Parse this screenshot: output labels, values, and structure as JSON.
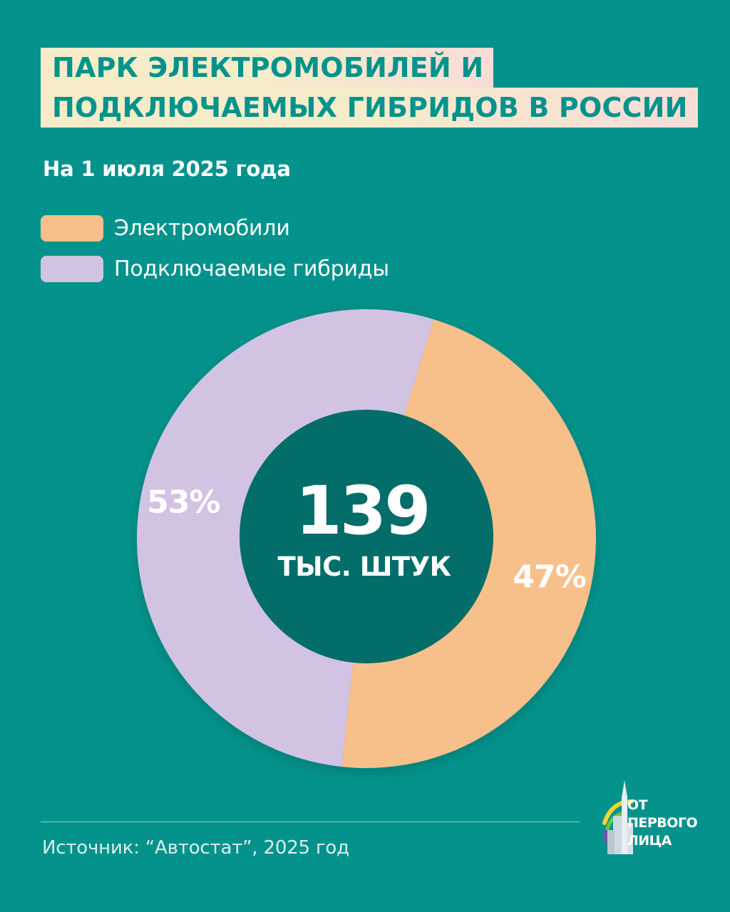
{
  "title_lines": [
    "ПАРК ЭЛЕКТРОМОБИЛЕЙ И",
    "ПОДКЛЮЧАЕМЫХ ГИБРИДОВ В РОССИИ"
  ],
  "subtitle": "На 1 июля 2025 года",
  "legend": [
    {
      "label": "Электромобили",
      "color": "#f7c08a"
    },
    {
      "label": "Подключаемые гибриды",
      "color": "#d3c3e3"
    }
  ],
  "center": {
    "value": "139",
    "unit": "ТЫС. ШТУК"
  },
  "source": "Источник: “Автостат”, 2025 год",
  "logo": {
    "lines": [
      "ОТ",
      "ПЕРВОГО",
      "ЛИЦА"
    ],
    "icon": "tower-rainbow-logo-icon"
  },
  "colors": {
    "background": "#03938c",
    "center_circle": "#036d69",
    "title_text": "#04938c"
  },
  "chart_data": {
    "type": "pie",
    "categories": [
      "Электромобили",
      "Подключаемые гибриды"
    ],
    "values": [
      47,
      53
    ],
    "labels": [
      "47%",
      "53%"
    ],
    "colors": [
      "#f7c08a",
      "#d3c3e3"
    ],
    "title": "ПАРК ЭЛЕКТРОМОБИЛЕЙ И ПОДКЛЮЧАЕМЫХ ГИБРИДОВ В РОССИИ",
    "legend": "top-left"
  }
}
